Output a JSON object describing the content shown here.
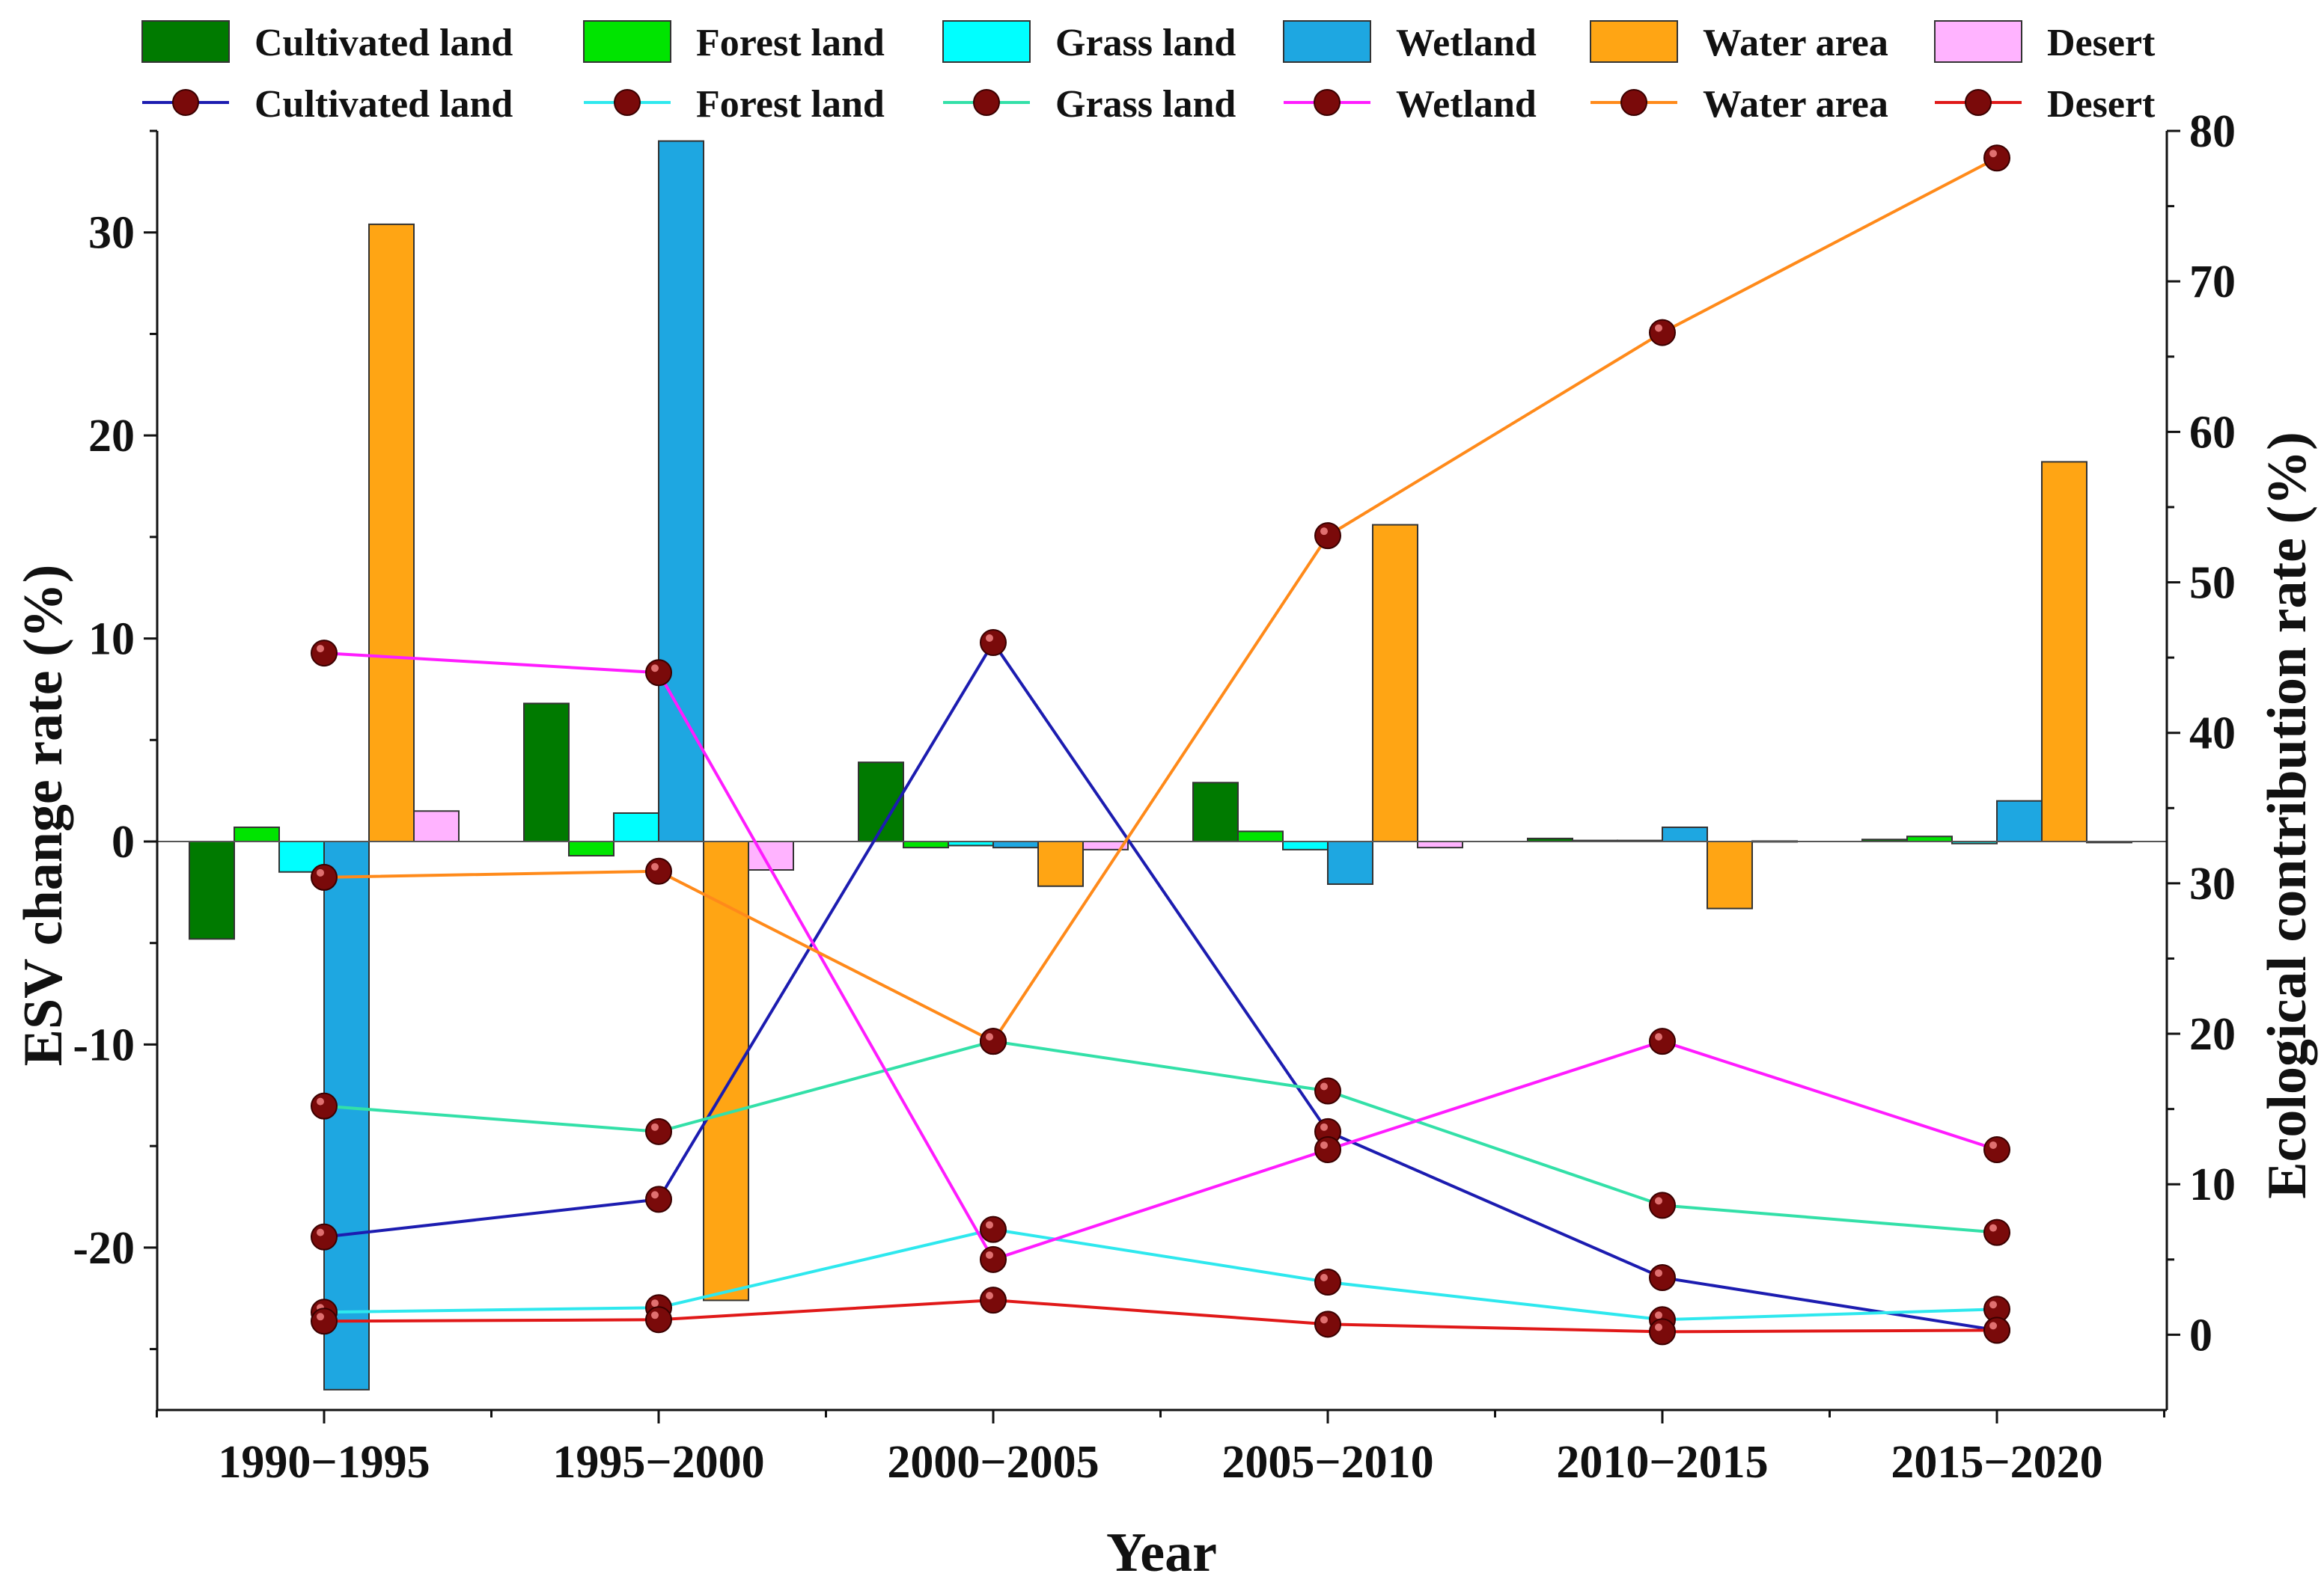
{
  "chart_data": {
    "type": "bar+line",
    "categories": [
      "1990−1995",
      "1995−2000",
      "2000−2005",
      "2005−2010",
      "2010−2015",
      "2015−2020"
    ],
    "xlabel": "Year",
    "ylabel": "ESV change rate (%)",
    "y2label": "Ecological contribution rate (%)",
    "ylim": [
      -28,
      35
    ],
    "y2lim": [
      -5,
      80
    ],
    "yticks": [
      -20,
      -10,
      0,
      10,
      20,
      30
    ],
    "y2ticks": [
      0,
      10,
      20,
      30,
      40,
      50,
      60,
      70,
      80
    ],
    "bar_series": [
      {
        "name": "Cultivated land",
        "color": "#007a00",
        "values": [
          -4.8,
          6.8,
          3.9,
          2.9,
          0.15,
          0.1
        ]
      },
      {
        "name": "Forest land",
        "color": "#00e400",
        "values": [
          0.7,
          -0.7,
          -0.3,
          0.5,
          0.05,
          0.25
        ]
      },
      {
        "name": "Grass land",
        "color": "#00ffff",
        "values": [
          -1.5,
          1.4,
          -0.2,
          -0.4,
          0.05,
          -0.1
        ]
      },
      {
        "name": "Wetland",
        "color": "#1ea7e1",
        "values": [
          -27.0,
          34.5,
          -0.3,
          -2.1,
          0.7,
          2.0
        ]
      },
      {
        "name": "Water area",
        "color": "#ffa514",
        "values": [
          30.4,
          -22.6,
          -2.2,
          15.6,
          -3.3,
          18.7
        ]
      },
      {
        "name": "Desert",
        "color": "#ffb3ff",
        "values": [
          1.5,
          -1.4,
          -0.4,
          -0.3,
          0.02,
          -0.05
        ]
      }
    ],
    "line_series": [
      {
        "name": "Cultivated land",
        "color": "#1c1cb0",
        "values": [
          6.5,
          9.0,
          46.0,
          13.5,
          3.8,
          0.3
        ]
      },
      {
        "name": "Forest land",
        "color": "#2ee8ee",
        "values": [
          1.5,
          1.8,
          7.0,
          3.5,
          1.0,
          1.7
        ]
      },
      {
        "name": "Grass land",
        "color": "#33e0a8",
        "values": [
          15.2,
          13.5,
          19.5,
          16.2,
          8.6,
          6.8
        ]
      },
      {
        "name": "Wetland",
        "color": "#ff1cff",
        "values": [
          45.3,
          44.0,
          5.0,
          12.3,
          19.5,
          12.3
        ]
      },
      {
        "name": "Water area",
        "color": "#ff8a1a",
        "values": [
          30.4,
          30.8,
          19.5,
          53.1,
          66.6,
          78.2
        ]
      },
      {
        "name": "Desert",
        "color": "#e01818",
        "values": [
          0.9,
          1.0,
          2.3,
          0.7,
          0.2,
          0.3
        ]
      }
    ],
    "marker_color": "#7a0a0a",
    "legend_position": "top"
  }
}
